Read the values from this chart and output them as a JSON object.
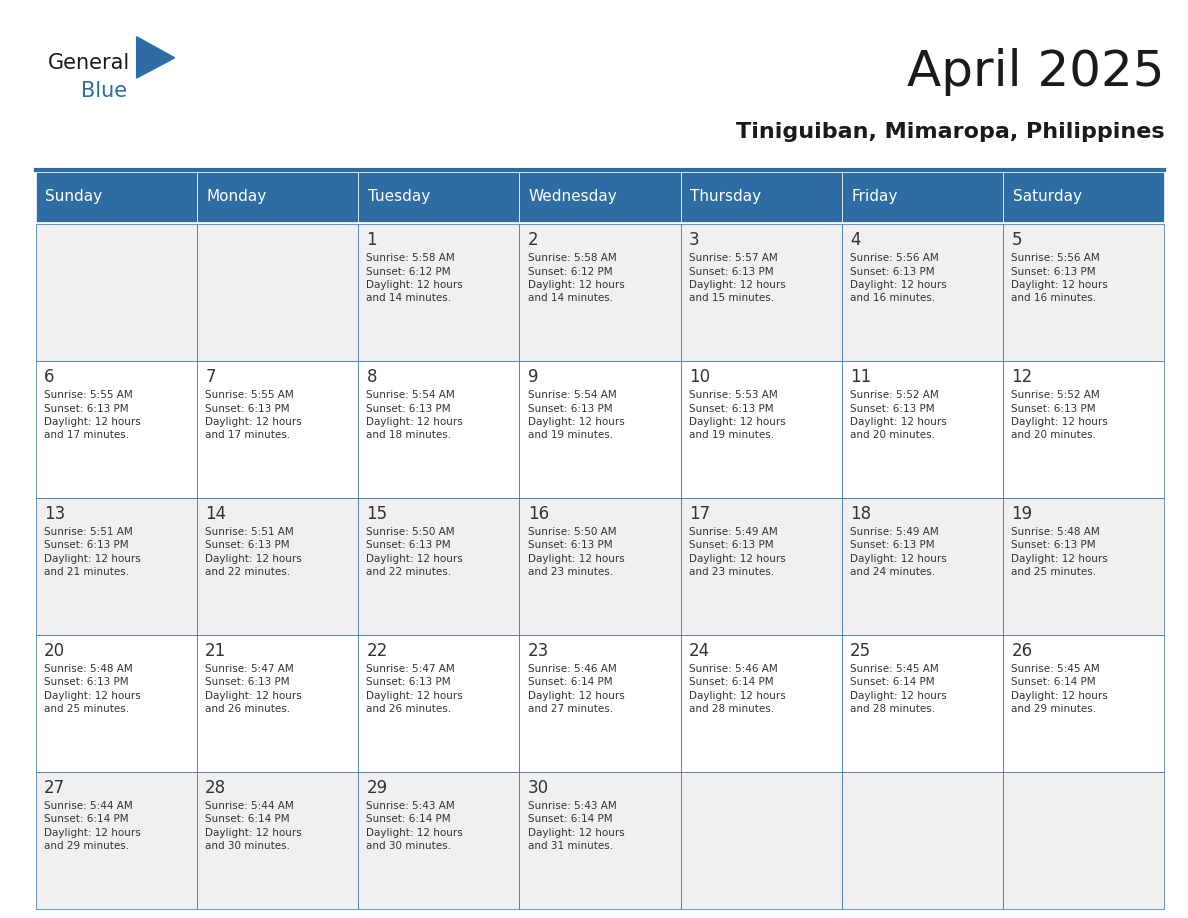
{
  "title": "April 2025",
  "subtitle": "Tiniguiban, Mimaropa, Philippines",
  "header_bg_color": "#2E6DA4",
  "header_text_color": "#FFFFFF",
  "cell_bg_color_even": "#F2F2F2",
  "cell_bg_color_odd": "#FFFFFF",
  "day_text_color": "#333333",
  "info_text_color": "#333333",
  "border_color": "#2E6DA4",
  "days_of_week": [
    "Sunday",
    "Monday",
    "Tuesday",
    "Wednesday",
    "Thursday",
    "Friday",
    "Saturday"
  ],
  "weeks": [
    [
      {
        "day": "",
        "info": ""
      },
      {
        "day": "",
        "info": ""
      },
      {
        "day": "1",
        "info": "Sunrise: 5:58 AM\nSunset: 6:12 PM\nDaylight: 12 hours\nand 14 minutes."
      },
      {
        "day": "2",
        "info": "Sunrise: 5:58 AM\nSunset: 6:12 PM\nDaylight: 12 hours\nand 14 minutes."
      },
      {
        "day": "3",
        "info": "Sunrise: 5:57 AM\nSunset: 6:13 PM\nDaylight: 12 hours\nand 15 minutes."
      },
      {
        "day": "4",
        "info": "Sunrise: 5:56 AM\nSunset: 6:13 PM\nDaylight: 12 hours\nand 16 minutes."
      },
      {
        "day": "5",
        "info": "Sunrise: 5:56 AM\nSunset: 6:13 PM\nDaylight: 12 hours\nand 16 minutes."
      }
    ],
    [
      {
        "day": "6",
        "info": "Sunrise: 5:55 AM\nSunset: 6:13 PM\nDaylight: 12 hours\nand 17 minutes."
      },
      {
        "day": "7",
        "info": "Sunrise: 5:55 AM\nSunset: 6:13 PM\nDaylight: 12 hours\nand 17 minutes."
      },
      {
        "day": "8",
        "info": "Sunrise: 5:54 AM\nSunset: 6:13 PM\nDaylight: 12 hours\nand 18 minutes."
      },
      {
        "day": "9",
        "info": "Sunrise: 5:54 AM\nSunset: 6:13 PM\nDaylight: 12 hours\nand 19 minutes."
      },
      {
        "day": "10",
        "info": "Sunrise: 5:53 AM\nSunset: 6:13 PM\nDaylight: 12 hours\nand 19 minutes."
      },
      {
        "day": "11",
        "info": "Sunrise: 5:52 AM\nSunset: 6:13 PM\nDaylight: 12 hours\nand 20 minutes."
      },
      {
        "day": "12",
        "info": "Sunrise: 5:52 AM\nSunset: 6:13 PM\nDaylight: 12 hours\nand 20 minutes."
      }
    ],
    [
      {
        "day": "13",
        "info": "Sunrise: 5:51 AM\nSunset: 6:13 PM\nDaylight: 12 hours\nand 21 minutes."
      },
      {
        "day": "14",
        "info": "Sunrise: 5:51 AM\nSunset: 6:13 PM\nDaylight: 12 hours\nand 22 minutes."
      },
      {
        "day": "15",
        "info": "Sunrise: 5:50 AM\nSunset: 6:13 PM\nDaylight: 12 hours\nand 22 minutes."
      },
      {
        "day": "16",
        "info": "Sunrise: 5:50 AM\nSunset: 6:13 PM\nDaylight: 12 hours\nand 23 minutes."
      },
      {
        "day": "17",
        "info": "Sunrise: 5:49 AM\nSunset: 6:13 PM\nDaylight: 12 hours\nand 23 minutes."
      },
      {
        "day": "18",
        "info": "Sunrise: 5:49 AM\nSunset: 6:13 PM\nDaylight: 12 hours\nand 24 minutes."
      },
      {
        "day": "19",
        "info": "Sunrise: 5:48 AM\nSunset: 6:13 PM\nDaylight: 12 hours\nand 25 minutes."
      }
    ],
    [
      {
        "day": "20",
        "info": "Sunrise: 5:48 AM\nSunset: 6:13 PM\nDaylight: 12 hours\nand 25 minutes."
      },
      {
        "day": "21",
        "info": "Sunrise: 5:47 AM\nSunset: 6:13 PM\nDaylight: 12 hours\nand 26 minutes."
      },
      {
        "day": "22",
        "info": "Sunrise: 5:47 AM\nSunset: 6:13 PM\nDaylight: 12 hours\nand 26 minutes."
      },
      {
        "day": "23",
        "info": "Sunrise: 5:46 AM\nSunset: 6:14 PM\nDaylight: 12 hours\nand 27 minutes."
      },
      {
        "day": "24",
        "info": "Sunrise: 5:46 AM\nSunset: 6:14 PM\nDaylight: 12 hours\nand 28 minutes."
      },
      {
        "day": "25",
        "info": "Sunrise: 5:45 AM\nSunset: 6:14 PM\nDaylight: 12 hours\nand 28 minutes."
      },
      {
        "day": "26",
        "info": "Sunrise: 5:45 AM\nSunset: 6:14 PM\nDaylight: 12 hours\nand 29 minutes."
      }
    ],
    [
      {
        "day": "27",
        "info": "Sunrise: 5:44 AM\nSunset: 6:14 PM\nDaylight: 12 hours\nand 29 minutes."
      },
      {
        "day": "28",
        "info": "Sunrise: 5:44 AM\nSunset: 6:14 PM\nDaylight: 12 hours\nand 30 minutes."
      },
      {
        "day": "29",
        "info": "Sunrise: 5:43 AM\nSunset: 6:14 PM\nDaylight: 12 hours\nand 30 minutes."
      },
      {
        "day": "30",
        "info": "Sunrise: 5:43 AM\nSunset: 6:14 PM\nDaylight: 12 hours\nand 31 minutes."
      },
      {
        "day": "",
        "info": ""
      },
      {
        "day": "",
        "info": ""
      },
      {
        "day": "",
        "info": ""
      }
    ]
  ],
  "logo_text_general": "General",
  "logo_text_blue": "Blue",
  "logo_color_general": "#1a1a1a",
  "logo_color_blue": "#2E6DA4",
  "logo_triangle_color": "#2E6DA4"
}
